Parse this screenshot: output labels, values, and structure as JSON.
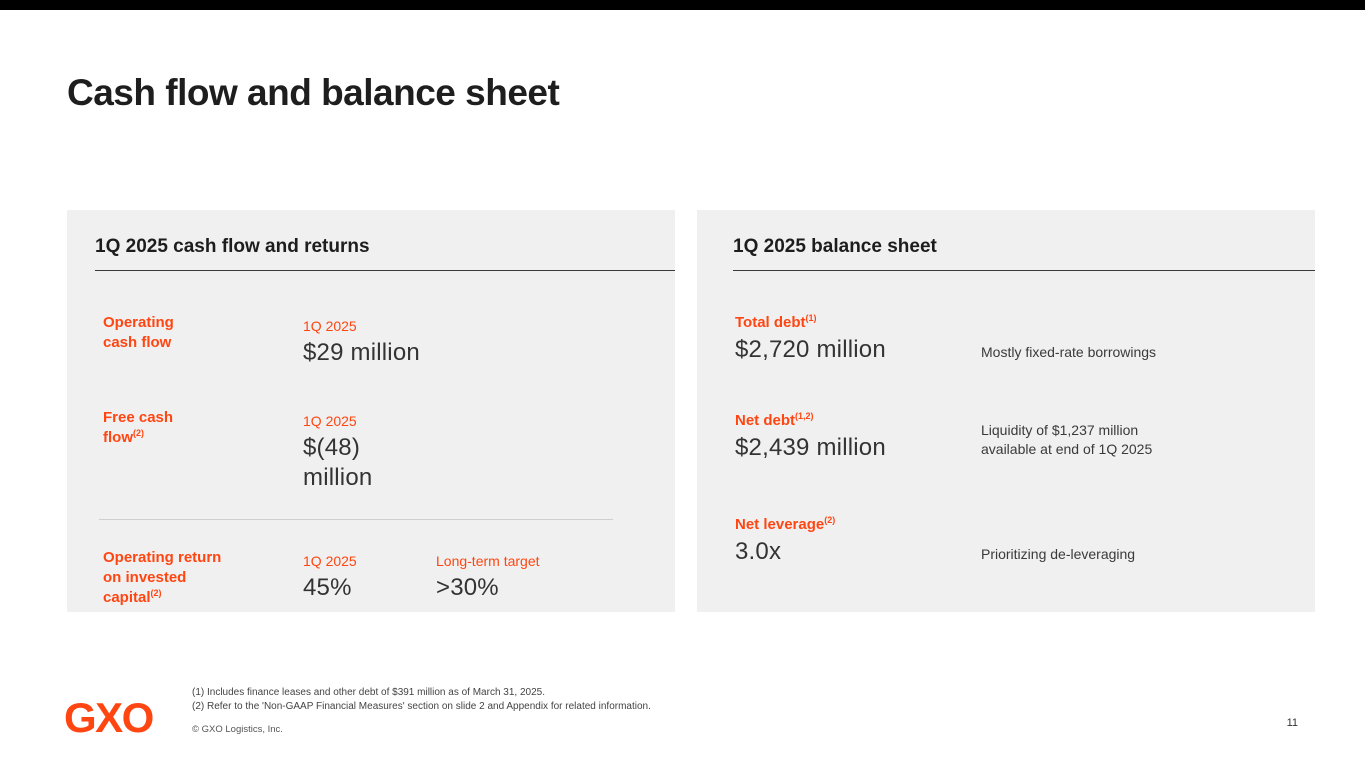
{
  "slide": {
    "title": "Cash flow and balance sheet",
    "page_number": "11"
  },
  "cash_flow_panel": {
    "heading": "1Q 2025 cash flow and returns",
    "rows": [
      {
        "label": "Operating\ncash flow",
        "sup": "",
        "period": "1Q 2025",
        "value": "$29 million"
      },
      {
        "label": "Free cash\nflow",
        "sup": "(2)",
        "period": "1Q 2025",
        "value": "$(48) million"
      },
      {
        "label": "Operating return\non invested\ncapital",
        "sup": "(2)",
        "period": "1Q 2025",
        "value": "45%",
        "target_label": "Long-term target",
        "target_value": ">30%"
      }
    ]
  },
  "balance_sheet_panel": {
    "heading": "1Q 2025 balance sheet",
    "rows": [
      {
        "label": "Total debt",
        "sup": "(1)",
        "value": "$2,720 million",
        "note": "Mostly fixed-rate borrowings"
      },
      {
        "label": "Net debt",
        "sup": "(1,2)",
        "value": "$2,439 million",
        "note": "Liquidity of $1,237 million\navailable at end of 1Q 2025"
      },
      {
        "label": "Net leverage",
        "sup": "(2)",
        "value": "3.0x",
        "note": "Prioritizing de-leveraging"
      }
    ]
  },
  "footer": {
    "logo_text": "GXO",
    "footnote_1": "(1) Includes finance leases and other debt of $391 million as of March 31, 2025.",
    "footnote_2": "(2) Refer to the 'Non-GAAP Financial Measures' section on slide 2 and Appendix for related information.",
    "copyright": "© GXO Logistics, Inc."
  },
  "colors": {
    "accent_orange": "#ff4612",
    "panel_background": "#f0f0f0",
    "text_dark": "#1e1e1e",
    "top_bar": "#000000"
  }
}
